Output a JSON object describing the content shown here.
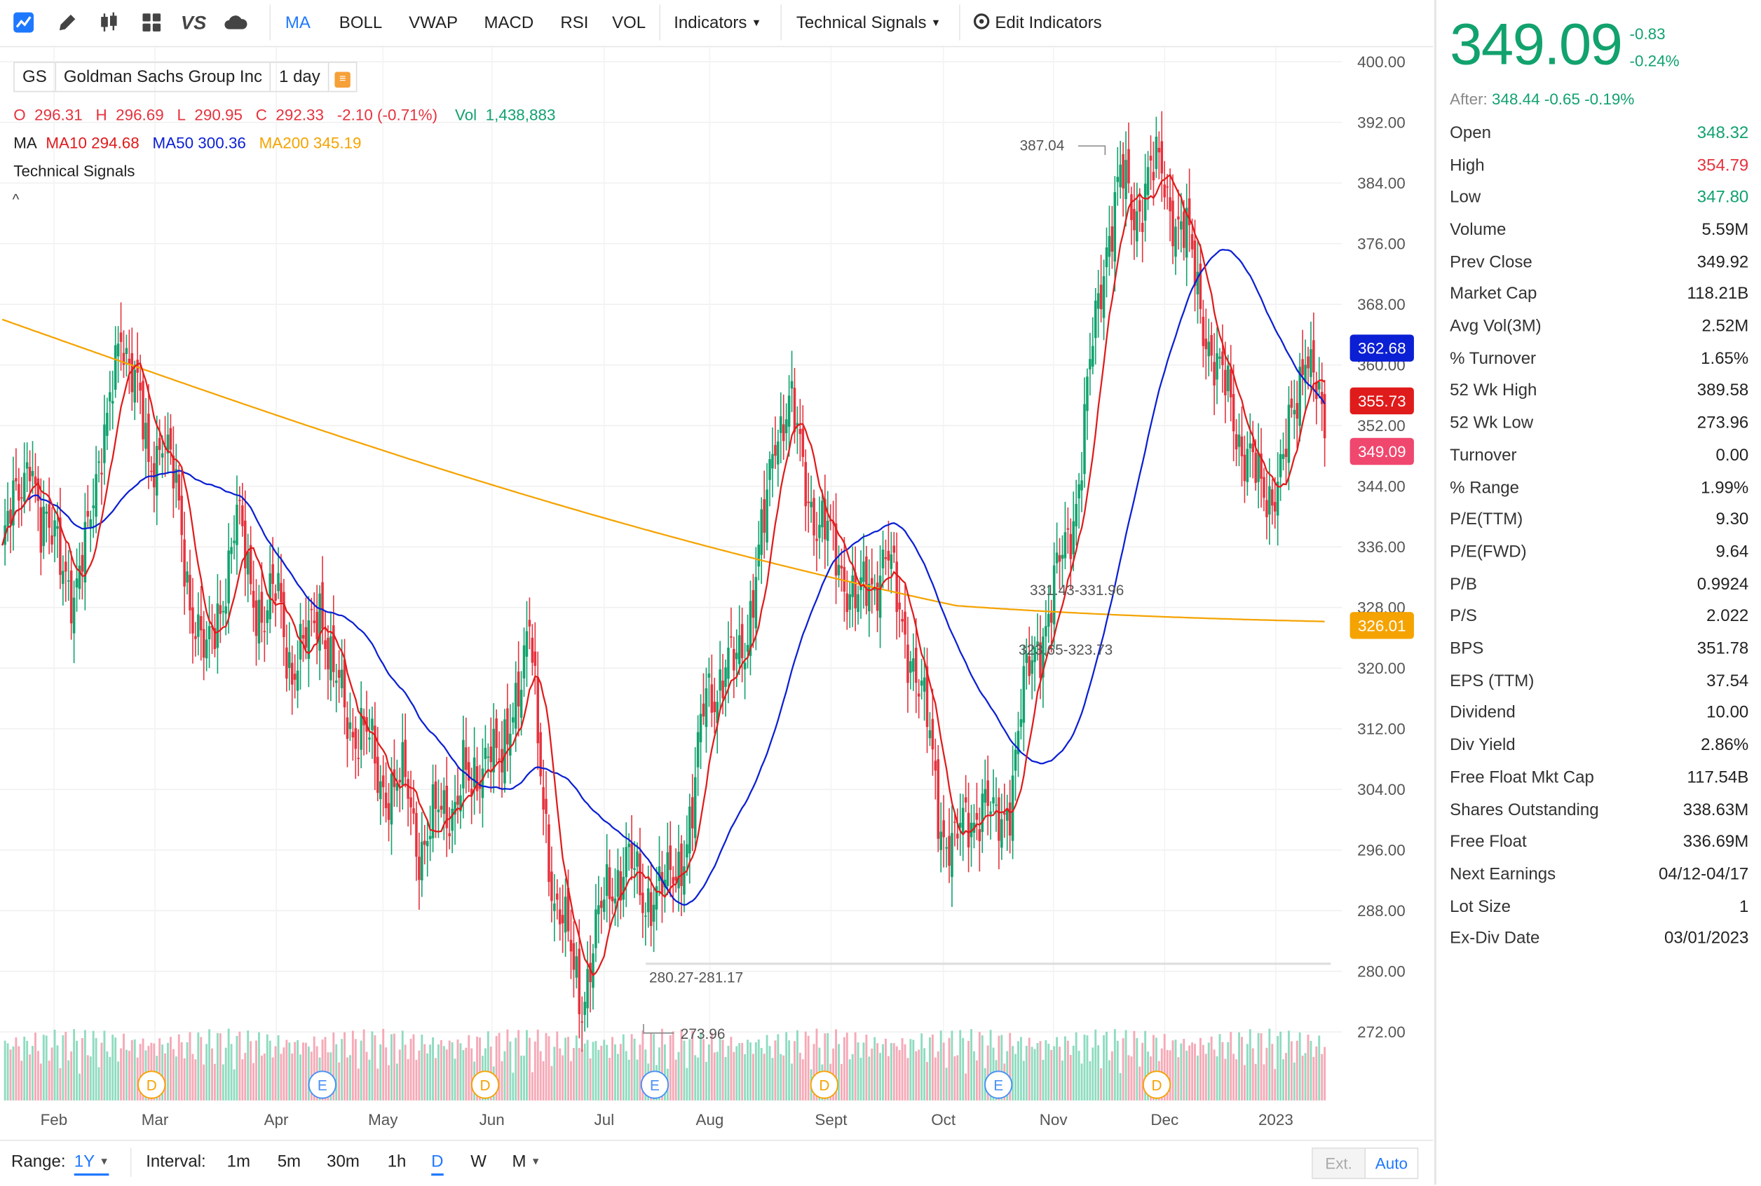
{
  "toolbar": {
    "icons": [
      "chart-type-icon",
      "draw-pencil-icon",
      "candlestick-icon",
      "layout-grid-icon",
      "compare-vs-icon",
      "cloud-icon"
    ],
    "tabs": [
      {
        "label": "MA",
        "active": true
      },
      {
        "label": "BOLL",
        "active": false
      },
      {
        "label": "VWAP",
        "active": false
      },
      {
        "label": "MACD",
        "active": false
      },
      {
        "label": "RSI",
        "active": false
      },
      {
        "label": "VOL",
        "active": false
      }
    ],
    "indicators_label": "Indicators",
    "signals_label": "Technical Signals",
    "edit_label": "Edit Indicators"
  },
  "legend": {
    "symbol": "GS",
    "name": "Goldman Sachs Group Inc",
    "period": "1 day",
    "o_label": "O",
    "o": "296.31",
    "h_label": "H",
    "h": "296.69",
    "l_label": "L",
    "l": "290.95",
    "c_label": "C",
    "c": "292.33",
    "chg": "-2.10 (-0.71%)",
    "vol_label": "Vol",
    "vol": "1,438,883",
    "ma_label": "MA",
    "ma10": "MA10 294.68",
    "ma50": "MA50 300.36",
    "ma200": "MA200 345.19",
    "signals": "Technical Signals",
    "collapse": "^"
  },
  "colors": {
    "up": "#12a26e",
    "down": "#e5333e",
    "ma10": "#e01b1b",
    "ma50": "#0b1fd4",
    "ma200": "#f5a300",
    "up_vol": "#8fdcc0",
    "down_vol": "#f6a9b6",
    "accent": "#1e78ff"
  },
  "chart_data": {
    "type": "candlestick",
    "ylim": [
      266,
      400
    ],
    "y_ticks": [
      "400.00",
      "392.00",
      "384.00",
      "376.00",
      "368.00",
      "360.00",
      "352.00",
      "344.00",
      "336.00",
      "328.00",
      "320.00",
      "312.00",
      "304.00",
      "296.00",
      "288.00",
      "280.00",
      "272.00"
    ],
    "x_labels": [
      "Feb",
      "Mar",
      "Apr",
      "May",
      "Jun",
      "Jul",
      "Aug",
      "Sept",
      "Oct",
      "Nov",
      "Dec",
      "2023"
    ],
    "event_markers": [
      "D",
      "E",
      "D",
      "E",
      "D",
      "E",
      "D"
    ],
    "annotations": [
      "387.04",
      "331.43-331.96",
      "323.65-323.73",
      "280.27-281.17",
      "273.96"
    ],
    "price_tags": [
      {
        "label": "362.68",
        "color": "#0b1fd4"
      },
      {
        "label": "355.73",
        "color": "#e01b1b"
      },
      {
        "label": "349.09",
        "color": "#f0476e"
      },
      {
        "label": "326.01",
        "color": "#f5a300"
      }
    ]
  },
  "bottom": {
    "range_label": "Range:",
    "range_value": "1Y",
    "interval_label": "Interval:",
    "intervals": [
      {
        "label": "1m",
        "active": false
      },
      {
        "label": "5m",
        "active": false
      },
      {
        "label": "30m",
        "active": false
      },
      {
        "label": "1h",
        "active": false
      },
      {
        "label": "D",
        "active": true
      },
      {
        "label": "W",
        "active": false
      },
      {
        "label": "M",
        "active": false
      }
    ],
    "ext": "Ext.",
    "auto": "Auto"
  },
  "quote": {
    "price": "349.09",
    "change": "-0.83",
    "change_pct": "-0.24%",
    "after_label": "After:",
    "after_value": "348.44 -0.65 -0.19%",
    "stats": [
      {
        "k": "Open",
        "v": "348.32",
        "c": "#12a26e"
      },
      {
        "k": "High",
        "v": "354.79",
        "c": "#e5333e"
      },
      {
        "k": "Low",
        "v": "347.80",
        "c": "#12a26e"
      },
      {
        "k": "Volume",
        "v": "5.59M"
      },
      {
        "k": "Prev Close",
        "v": "349.92"
      },
      {
        "k": "Market Cap",
        "v": "118.21B"
      },
      {
        "k": "Avg Vol(3M)",
        "v": "2.52M"
      },
      {
        "k": "% Turnover",
        "v": "1.65%"
      },
      {
        "k": "52 Wk High",
        "v": "389.58"
      },
      {
        "k": "52 Wk Low",
        "v": "273.96"
      },
      {
        "k": "Turnover",
        "v": "0.00"
      },
      {
        "k": "% Range",
        "v": "1.99%"
      },
      {
        "k": "P/E(TTM)",
        "v": "9.30"
      },
      {
        "k": "P/E(FWD)",
        "v": "9.64"
      },
      {
        "k": "P/B",
        "v": "0.9924"
      },
      {
        "k": "P/S",
        "v": "2.022"
      },
      {
        "k": "BPS",
        "v": "351.78"
      },
      {
        "k": "EPS (TTM)",
        "v": "37.54"
      },
      {
        "k": "Dividend",
        "v": "10.00"
      },
      {
        "k": "Div Yield",
        "v": "2.86%"
      },
      {
        "k": "Free Float Mkt Cap",
        "v": "117.54B"
      },
      {
        "k": "Shares Outstanding",
        "v": "338.63M"
      },
      {
        "k": "Free Float",
        "v": "336.69M"
      },
      {
        "k": "Next Earnings",
        "v": "04/12-04/17"
      },
      {
        "k": "Lot Size",
        "v": "1"
      },
      {
        "k": "Ex-Div Date",
        "v": "03/01/2023"
      }
    ]
  }
}
